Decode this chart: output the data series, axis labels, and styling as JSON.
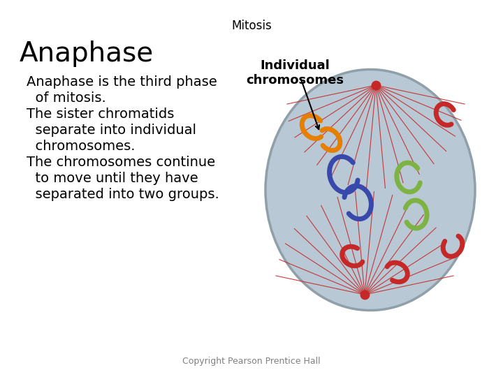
{
  "title": "Mitosis",
  "title_fontsize": 12,
  "heading": "Anaphase",
  "heading_fontsize": 28,
  "label_individual": "Individual\nchromosomes",
  "label_individual_fontsize": 13,
  "bullet1_line1": "Anaphase is the third phase",
  "bullet1_line2": "  of mitosis.",
  "bullet2_line1": "The sister chromatids",
  "bullet2_line2": "  separate into individual",
  "bullet2_line3": "  chromosomes.",
  "bullet3_line1": "The chromosomes continue",
  "bullet3_line2": "  to move until they have",
  "bullet3_line3": "  separated into two groups.",
  "text_fontsize": 14,
  "copyright": "Copyright Pearson Prentice Hall",
  "copyright_fontsize": 9,
  "background_color": "#ffffff",
  "cell_facecolor": "#b8c8d4",
  "cell_edgecolor": "#8fa0a8",
  "spindle_color": "#c62828",
  "orange": "#e67e00",
  "blue": "#3949ab",
  "green": "#7cb342",
  "red": "#c62828"
}
